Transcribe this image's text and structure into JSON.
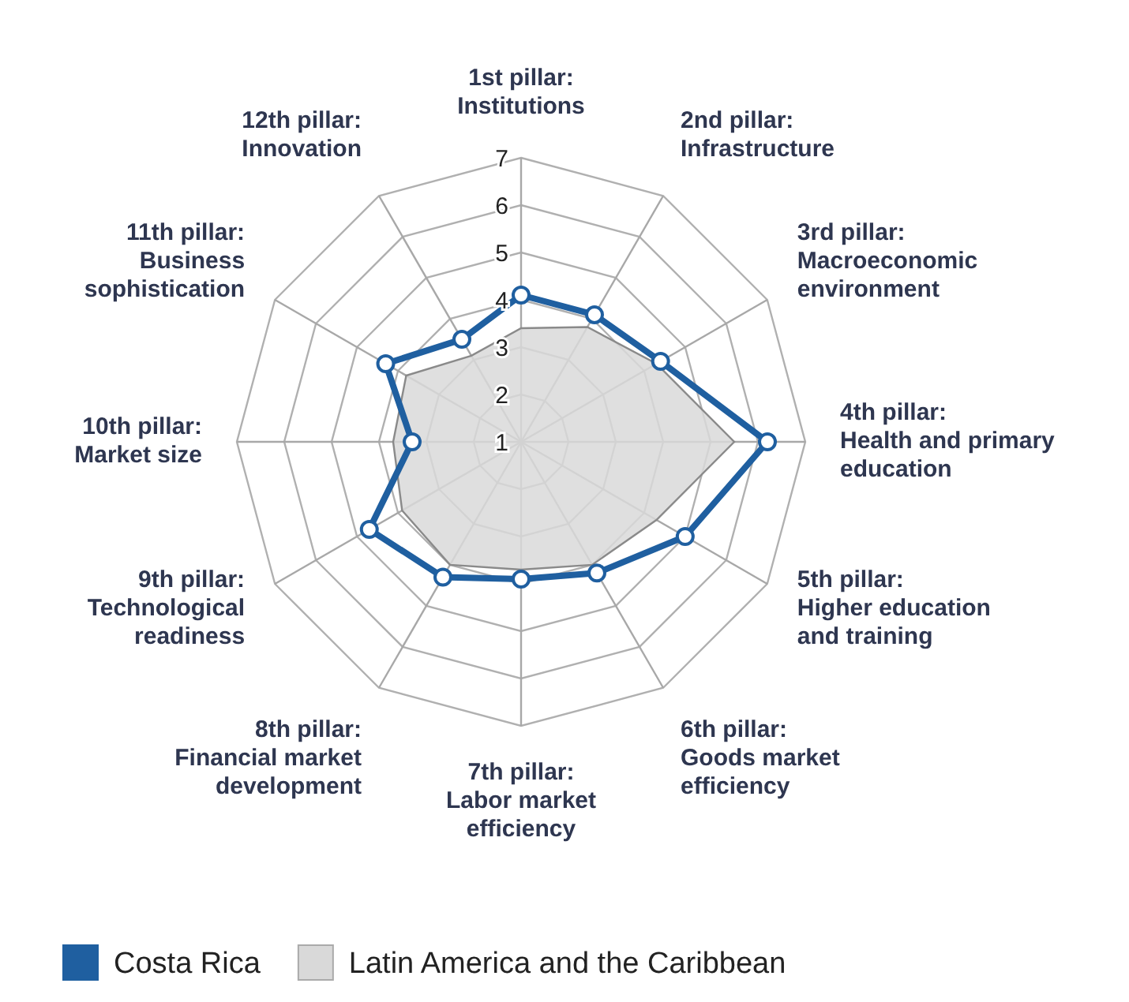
{
  "chart_data": {
    "type": "radar",
    "categories": [
      "1st pillar: Institutions",
      "2nd pillar: Infrastructure",
      "3rd pillar: Macroeconomic environment",
      "4th pillar: Health and primary education",
      "5th pillar: Higher education and training",
      "6th pillar: Goods market efficiency",
      "7th pillar: Labor market efficiency",
      "8th pillar: Financial market development",
      "9th pillar: Technological readiness",
      "10th pillar: Market size",
      "11th pillar: Business sophistication",
      "12th pillar: Innovation"
    ],
    "series": [
      {
        "name": "Latin America and the Caribbean",
        "color": "#d9d9d9",
        "type": "area",
        "values": [
          3.4,
          3.8,
          4.3,
          5.5,
          4.3,
          4.0,
          3.7,
          4.0,
          3.9,
          3.7,
          3.8,
          3.1
        ]
      },
      {
        "name": "Costa Rica",
        "color": "#1f5fa0",
        "marker": "circle",
        "values": [
          4.1,
          4.1,
          4.4,
          6.2,
          5.0,
          4.2,
          3.9,
          4.3,
          4.7,
          3.3,
          4.3,
          3.5
        ]
      }
    ],
    "ylim": [
      1,
      7
    ],
    "yticks": [
      1,
      2,
      3,
      4,
      5,
      6,
      7
    ],
    "grid": true,
    "legend": "bottom"
  }
}
